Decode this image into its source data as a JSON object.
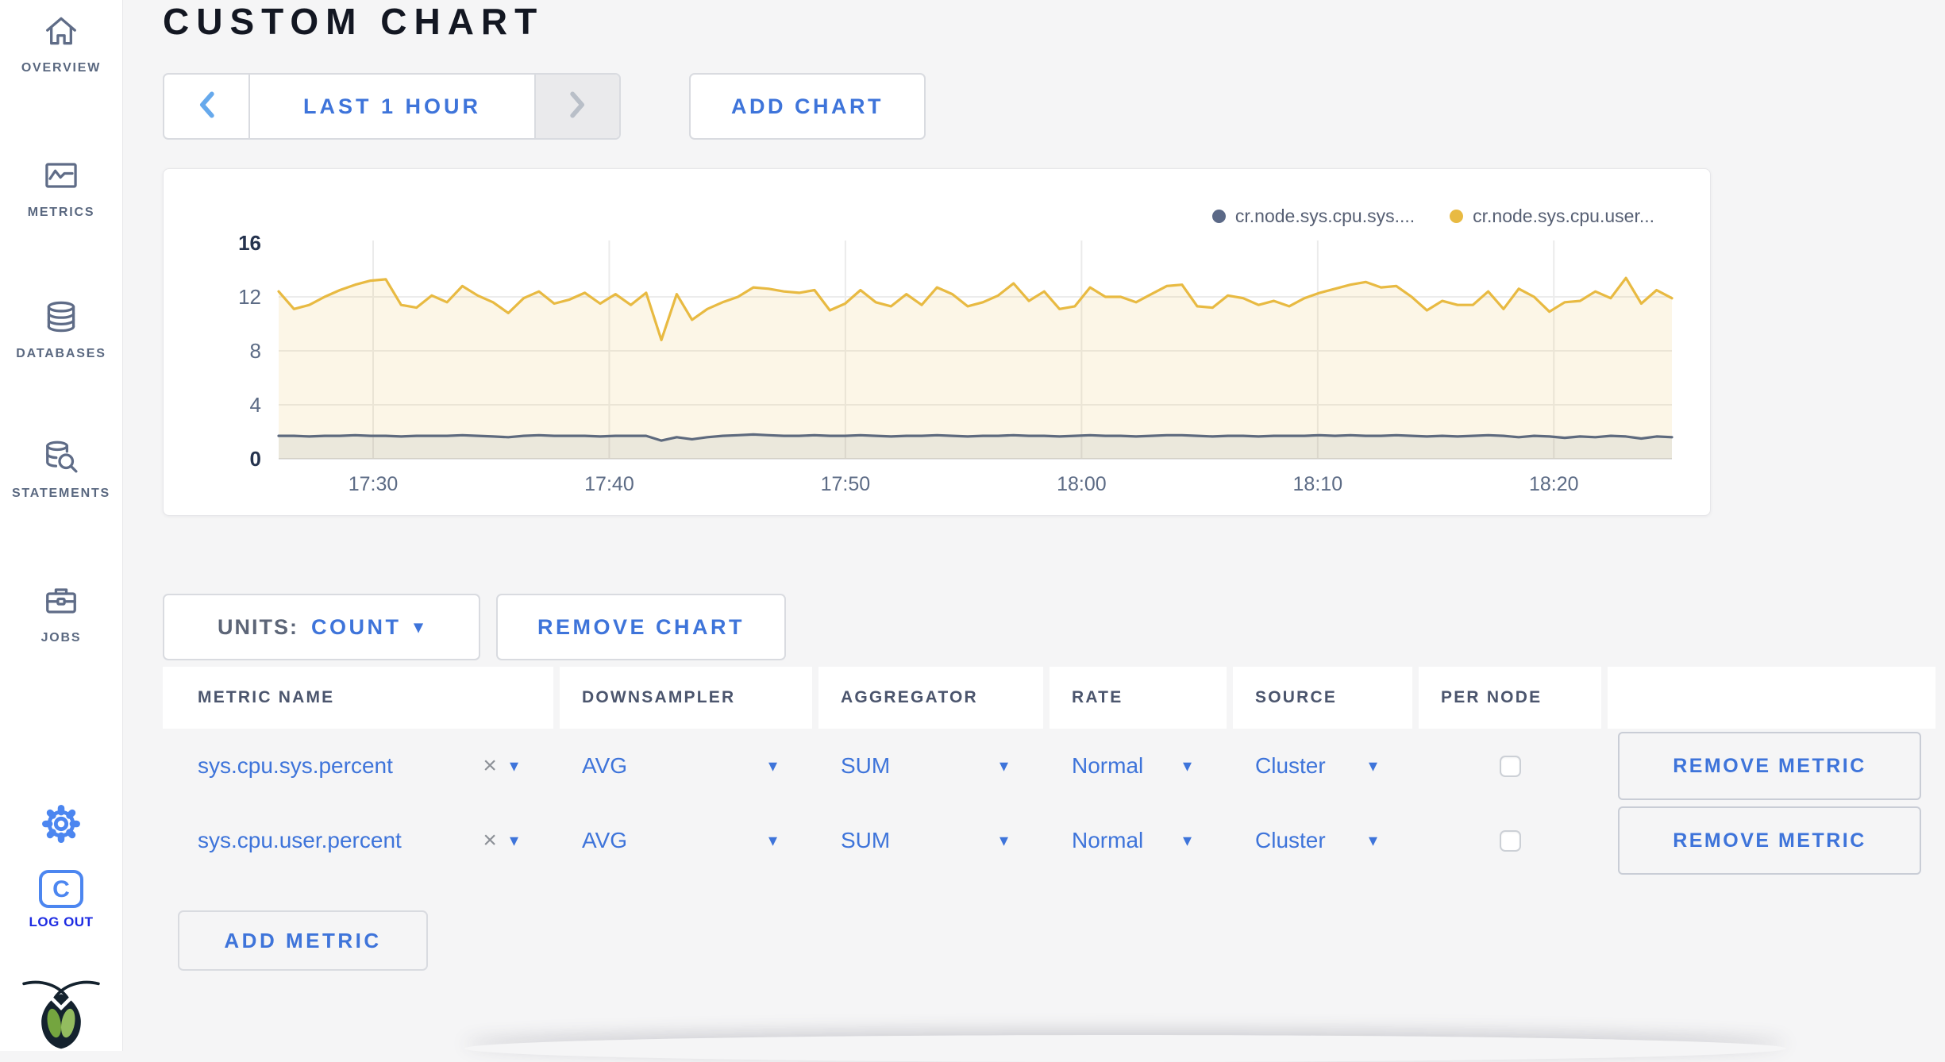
{
  "colors": {
    "accent": "#3e74da",
    "nav_icon": "#5f6c87",
    "logout_blue": "#1e2ce2",
    "blue_icon": "#4c86f0",
    "page_bg": "#f5f5f6",
    "series_sys": "#5e6a7e",
    "series_user": "#e8ba42"
  },
  "sidebar": {
    "items": [
      {
        "label": "OVERVIEW",
        "icon": "home-icon"
      },
      {
        "label": "METRICS",
        "icon": "metrics-icon"
      },
      {
        "label": "DATABASES",
        "icon": "database-icon"
      },
      {
        "label": "STATEMENTS",
        "icon": "statements-icon"
      },
      {
        "label": "JOBS",
        "icon": "briefcase-icon"
      }
    ],
    "logout_label": "LOG OUT"
  },
  "header": {
    "title": "CUSTOM CHART"
  },
  "toolbar": {
    "time_range_label": "LAST 1 HOUR",
    "add_chart_label": "ADD CHART"
  },
  "chart_controls": {
    "units_label": "UNITS:",
    "units_value": "COUNT",
    "remove_chart_label": "REMOVE CHART",
    "add_metric_label": "ADD METRIC"
  },
  "chart_data": {
    "type": "line",
    "title": "",
    "xlabel": "",
    "ylabel": "",
    "ylim": [
      0,
      16
    ],
    "y_ticks": [
      0,
      4,
      8,
      12,
      16
    ],
    "x_range_minutes": [
      0,
      59
    ],
    "x_ticks": [
      {
        "min": 4,
        "label": "17:30"
      },
      {
        "min": 14,
        "label": "17:40"
      },
      {
        "min": 24,
        "label": "17:50"
      },
      {
        "min": 34,
        "label": "18:00"
      },
      {
        "min": 44,
        "label": "18:10"
      },
      {
        "min": 54,
        "label": "18:20"
      }
    ],
    "grid": true,
    "legend_position": "top-right",
    "legend": [
      {
        "label": "cr.node.sys.cpu.sys....",
        "color": "#5b6987"
      },
      {
        "label": "cr.node.sys.cpu.user...",
        "color": "#e8ba42"
      }
    ],
    "series": [
      {
        "name": "cr.node.sys.cpu.user...",
        "color": "#e8ba42",
        "fill": "rgba(232,186,66,0.13)",
        "values": [
          12.4,
          11.1,
          11.4,
          12.0,
          12.5,
          12.9,
          13.2,
          13.3,
          11.4,
          11.2,
          12.1,
          11.6,
          12.8,
          12.1,
          11.6,
          10.8,
          11.9,
          12.4,
          11.5,
          11.8,
          12.3,
          11.5,
          12.2,
          11.4,
          12.3,
          8.8,
          12.2,
          10.3,
          11.1,
          11.6,
          12.0,
          12.7,
          12.6,
          12.4,
          12.3,
          12.5,
          11.0,
          11.5,
          12.5,
          11.6,
          11.3,
          12.2,
          11.4,
          12.7,
          12.2,
          11.3,
          11.6,
          12.1,
          13.0,
          11.7,
          12.4,
          11.1,
          11.3,
          12.7,
          12.0,
          12.0,
          11.6,
          12.2,
          12.8,
          12.9,
          11.3,
          11.2,
          12.1,
          11.9,
          11.4,
          11.7,
          11.3,
          11.9,
          12.3,
          12.6,
          12.9,
          13.1,
          12.7,
          12.8,
          12.0,
          11.0,
          11.7,
          11.4,
          11.4,
          12.4,
          11.1,
          12.6,
          12.0,
          10.9,
          11.6,
          11.7,
          12.4,
          11.9,
          13.4,
          11.5,
          12.5,
          11.9
        ]
      },
      {
        "name": "cr.node.sys.cpu.sys....",
        "color": "#5e6a7e",
        "fill": "rgba(93,106,128,0.10)",
        "values": [
          1.7,
          1.7,
          1.65,
          1.7,
          1.7,
          1.75,
          1.7,
          1.7,
          1.65,
          1.7,
          1.7,
          1.7,
          1.75,
          1.7,
          1.65,
          1.6,
          1.7,
          1.75,
          1.7,
          1.7,
          1.7,
          1.65,
          1.7,
          1.7,
          1.7,
          1.35,
          1.6,
          1.45,
          1.6,
          1.7,
          1.75,
          1.8,
          1.75,
          1.7,
          1.7,
          1.75,
          1.7,
          1.7,
          1.75,
          1.7,
          1.65,
          1.7,
          1.7,
          1.75,
          1.7,
          1.65,
          1.7,
          1.7,
          1.75,
          1.7,
          1.7,
          1.65,
          1.7,
          1.75,
          1.7,
          1.7,
          1.65,
          1.7,
          1.75,
          1.75,
          1.7,
          1.65,
          1.7,
          1.7,
          1.65,
          1.7,
          1.7,
          1.7,
          1.75,
          1.7,
          1.75,
          1.7,
          1.7,
          1.75,
          1.7,
          1.65,
          1.7,
          1.65,
          1.7,
          1.75,
          1.7,
          1.6,
          1.7,
          1.65,
          1.55,
          1.65,
          1.6,
          1.7,
          1.65,
          1.5,
          1.65,
          1.6
        ]
      }
    ]
  },
  "metrics_table": {
    "headers": [
      "METRIC NAME",
      "DOWNSAMPLER",
      "AGGREGATOR",
      "RATE",
      "SOURCE",
      "PER NODE",
      ""
    ],
    "rows": [
      {
        "metric_name": "sys.cpu.sys.percent",
        "downsampler": "AVG",
        "aggregator": "SUM",
        "rate": "Normal",
        "source": "Cluster",
        "per_node_checked": false,
        "remove_label": "REMOVE METRIC"
      },
      {
        "metric_name": "sys.cpu.user.percent",
        "downsampler": "AVG",
        "aggregator": "SUM",
        "rate": "Normal",
        "source": "Cluster",
        "per_node_checked": false,
        "remove_label": "REMOVE METRIC"
      }
    ]
  }
}
